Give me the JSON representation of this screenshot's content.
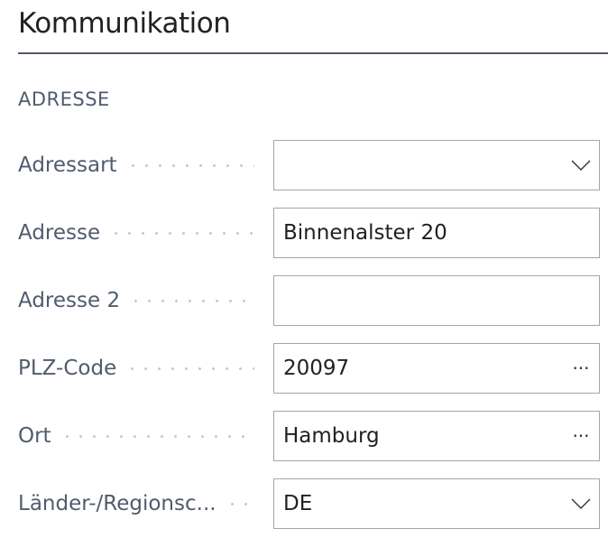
{
  "title": "Kommunikation",
  "section": "ADRESSE",
  "fields": [
    {
      "label": "Adressart",
      "value": "",
      "control": "dropdown",
      "icon": "chevron-down-icon"
    },
    {
      "label": "Adresse",
      "value": "Binnenalster 20",
      "control": "text"
    },
    {
      "label": "Adresse 2",
      "value": "",
      "control": "text"
    },
    {
      "label": "PLZ-Code",
      "value": "20097",
      "control": "lookup",
      "icon": "ellipsis-icon",
      "icon_text": "···"
    },
    {
      "label": "Ort",
      "value": "Hamburg",
      "control": "lookup",
      "icon": "ellipsis-icon",
      "icon_text": "···"
    },
    {
      "label": "Länder-/Regionsc...",
      "value": "DE",
      "control": "dropdown",
      "icon": "chevron-down-icon"
    }
  ]
}
